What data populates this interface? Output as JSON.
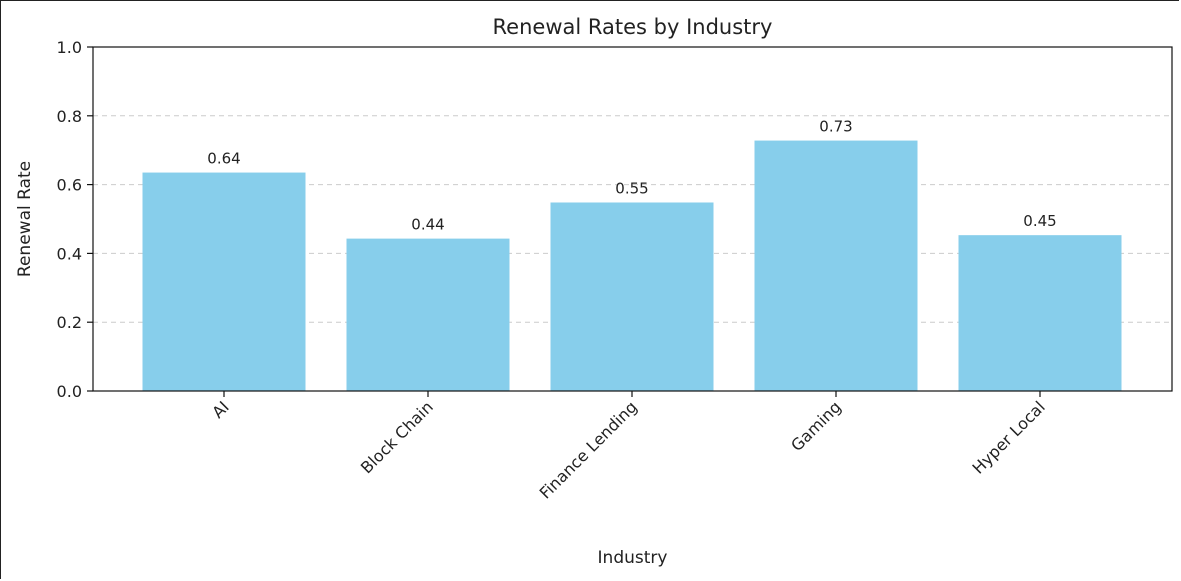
{
  "chart_data": {
    "type": "bar",
    "title": "Renewal Rates by Industry",
    "xlabel": "Industry",
    "ylabel": "Renewal Rate",
    "categories": [
      "AI",
      "Block Chain",
      "Finance Lending",
      "Gaming",
      "Hyper Local"
    ],
    "values": [
      0.635,
      0.443,
      0.548,
      0.728,
      0.453
    ],
    "data_labels": [
      "0.64",
      "0.44",
      "0.55",
      "0.73",
      "0.45"
    ],
    "yticks": [
      "0.0",
      "0.2",
      "0.4",
      "0.6",
      "0.8",
      "1.0"
    ],
    "ylim": [
      0,
      1
    ],
    "bar_color": "#87ceeb",
    "grid": "y-dashed",
    "legend": "none"
  }
}
